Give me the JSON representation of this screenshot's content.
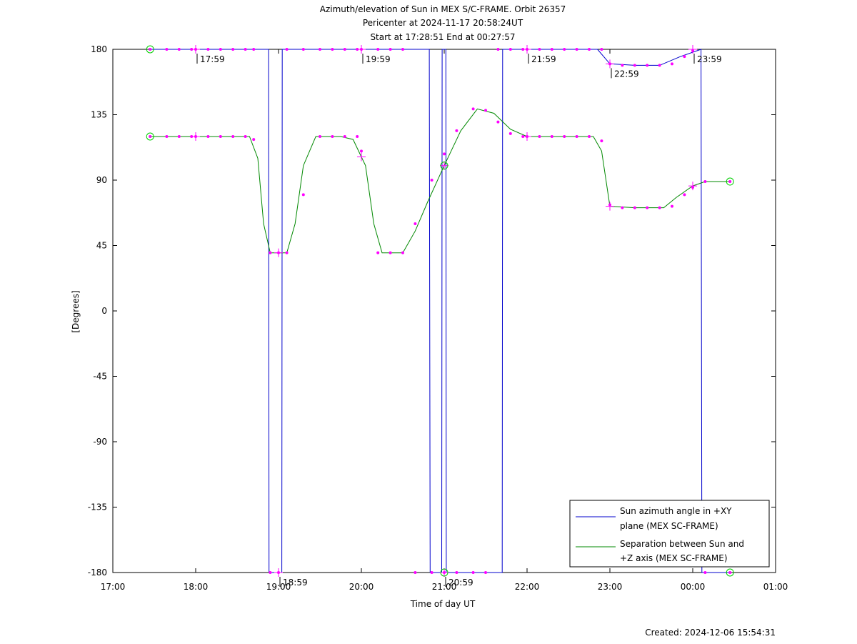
{
  "chart_data": {
    "type": "line",
    "title_lines": [
      "Azimuth/elevation of Sun in MEX S/C-FRAME.  Orbit 26357",
      "Pericenter at 2024-11-17 20:58:24UT",
      "Start at 17:28:51 End at 00:27:57"
    ],
    "xlabel": "Time of day UT",
    "ylabel": "[Degrees]",
    "xlim": [
      0,
      8
    ],
    "ylim": [
      -180,
      180
    ],
    "x_ticks": [
      {
        "v": 0,
        "label": "17:00"
      },
      {
        "v": 1,
        "label": "18:00"
      },
      {
        "v": 2,
        "label": "19:00"
      },
      {
        "v": 3,
        "label": "20:00"
      },
      {
        "v": 4,
        "label": "21:00"
      },
      {
        "v": 5,
        "label": "22:00"
      },
      {
        "v": 6,
        "label": "23:00"
      },
      {
        "v": 7,
        "label": "00:00"
      },
      {
        "v": 8,
        "label": "01:00"
      }
    ],
    "y_ticks": [
      {
        "v": 180,
        "label": "180"
      },
      {
        "v": 135,
        "label": "135"
      },
      {
        "v": 90,
        "label": "90"
      },
      {
        "v": 45,
        "label": "45"
      },
      {
        "v": 0,
        "label": "0"
      },
      {
        "v": -45,
        "label": "-45"
      },
      {
        "v": -90,
        "label": "-90"
      },
      {
        "v": -135,
        "label": "-135"
      },
      {
        "v": -180,
        "label": "-180"
      }
    ],
    "legend_position": "bottom-right",
    "series": [
      {
        "name": "Sun azimuth angle in +XY plane (MEX SC-FRAME)",
        "legend_lines": [
          "Sun azimuth angle in +XY",
          "plane (MEX SC-FRAME)"
        ],
        "color": "#0000cc",
        "x": [
          0.45,
          1.0,
          1.5,
          1.8,
          1.88,
          1.885,
          2.04,
          2.045,
          2.055,
          2.06,
          3.0,
          3.5,
          3.82,
          3.83,
          3.97,
          3.975,
          4.02,
          4.025,
          4.7,
          4.705,
          5.0,
          5.5,
          5.85,
          6.0,
          6.3,
          6.6,
          6.85,
          7.1,
          7.11,
          7.45
        ],
        "y": [
          180,
          180,
          180,
          180,
          180,
          -180,
          -180,
          180,
          180,
          180,
          180,
          180,
          180,
          -180,
          -180,
          180,
          180,
          -180,
          -180,
          180,
          180,
          180,
          180,
          170,
          169,
          169,
          175,
          180,
          -180,
          -180
        ]
      },
      {
        "name": "Separation between Sun and +Z axis (MEX SC-FRAME)",
        "legend_lines": [
          "Separation between Sun and",
          "+Z axis (MEX SC-FRAME)"
        ],
        "color": "#008800",
        "x": [
          0.45,
          1.0,
          1.5,
          1.65,
          1.75,
          1.82,
          1.9,
          2.0,
          2.1,
          2.2,
          2.3,
          2.45,
          2.75,
          2.9,
          3.05,
          3.15,
          3.25,
          3.5,
          3.65,
          3.8,
          4.0,
          4.2,
          4.4,
          4.6,
          4.8,
          5.0,
          5.5,
          5.8,
          5.9,
          6.0,
          6.3,
          6.65,
          6.8,
          7.0,
          7.15,
          7.45
        ],
        "y": [
          120,
          120,
          120,
          120,
          105,
          60,
          40,
          40,
          40,
          60,
          100,
          120,
          120,
          118,
          100,
          60,
          40,
          40,
          55,
          75,
          100,
          124,
          139,
          136,
          125,
          120,
          120,
          120,
          110,
          72,
          71,
          71,
          78,
          86,
          89,
          89
        ]
      }
    ],
    "marker_color": "#ff00ff",
    "marker_x": [
      0.45,
      0.65,
      0.8,
      0.95,
      1.0,
      1.15,
      1.3,
      1.45,
      1.6,
      1.7,
      1.9,
      2.0,
      2.1,
      2.3,
      2.5,
      2.65,
      2.8,
      2.95,
      3.0,
      3.2,
      3.35,
      3.5,
      3.65,
      3.85,
      4.0,
      4.15,
      4.35,
      4.5,
      4.65,
      4.8,
      4.95,
      5.0,
      5.15,
      5.3,
      5.45,
      5.6,
      5.75,
      5.9,
      6.0,
      6.15,
      6.3,
      6.45,
      6.6,
      6.75,
      6.9,
      7.0,
      7.15,
      7.45
    ],
    "marker_y_azimuth": [
      180,
      180,
      180,
      180,
      180,
      180,
      180,
      180,
      180,
      180,
      -180,
      -180,
      180,
      180,
      180,
      180,
      180,
      180,
      180,
      180,
      180,
      180,
      -180,
      -180,
      -180,
      -180,
      -180,
      -180,
      180,
      180,
      180,
      180,
      180,
      180,
      180,
      180,
      180,
      180,
      170,
      169,
      169,
      169,
      169,
      170,
      175,
      179,
      -180,
      -180
    ],
    "marker_y_separation": [
      120,
      120,
      120,
      120,
      120,
      120,
      120,
      120,
      120,
      118,
      40,
      40,
      40,
      80,
      120,
      120,
      120,
      120,
      110,
      40,
      40,
      40,
      60,
      90,
      108,
      124,
      139,
      138,
      130,
      122,
      120,
      120,
      120,
      120,
      120,
      120,
      120,
      117,
      73,
      71,
      71,
      71,
      71,
      72,
      80,
      85,
      89,
      89
    ],
    "endpoint_x": [
      0.45,
      7.45
    ],
    "crosses_x": [
      1.0,
      2.0,
      3.0,
      4.0,
      5.0,
      6.0,
      7.0
    ],
    "orbit_time_labels": [
      {
        "x": 1.0,
        "y": 180,
        "label": "17:59"
      },
      {
        "x": 2.0,
        "y": -180,
        "label": "18:59"
      },
      {
        "x": 3.0,
        "y": 180,
        "label": "19:59"
      },
      {
        "x": 4.0,
        "y": -180,
        "label": "20:59"
      },
      {
        "x": 5.0,
        "y": 180,
        "label": "21:59"
      },
      {
        "x": 6.0,
        "y": 170,
        "label": "22:59"
      },
      {
        "x": 7.0,
        "y": 180,
        "label": "23:59"
      }
    ],
    "created": "Created: 2024-12-06 15:54:31"
  }
}
